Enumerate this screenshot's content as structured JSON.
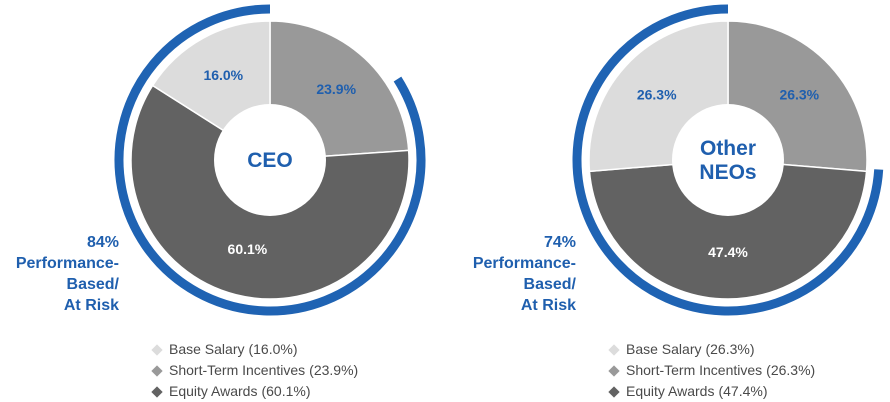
{
  "chart_data": [
    {
      "type": "pie",
      "title": "CEO",
      "categories": [
        "Base Salary",
        "Short-Term Incentives",
        "Equity Awards"
      ],
      "values": [
        16.0,
        23.9,
        60.1
      ],
      "value_labels": [
        "16.0%",
        "23.9%",
        "60.1%"
      ],
      "colors": [
        "#dcdcdc",
        "#999999",
        "#626262"
      ],
      "at_risk": {
        "value": 84,
        "pct_label": "84%",
        "label_lines": [
          "Performance-",
          "Based/",
          "At Risk"
        ]
      },
      "legend": [
        {
          "label": "Base Salary",
          "value": "(16.0%)"
        },
        {
          "label": "Short-Term Incentives",
          "value": "(23.9%)"
        },
        {
          "label": "Equity Awards",
          "value": "(60.1%)"
        }
      ]
    },
    {
      "type": "pie",
      "title_lines": [
        "Other",
        "NEOs"
      ],
      "categories": [
        "Base Salary",
        "Short-Term Incentives",
        "Equity Awards"
      ],
      "values": [
        26.3,
        26.3,
        47.4
      ],
      "value_labels": [
        "26.3%",
        "26.3%",
        "47.4%"
      ],
      "colors": [
        "#dcdcdc",
        "#999999",
        "#626262"
      ],
      "at_risk": {
        "value": 74,
        "pct_label": "74%",
        "label_lines": [
          "Performance-",
          "Based/",
          "At Risk"
        ]
      },
      "legend": [
        {
          "label": "Base Salary",
          "value": "(26.3%)"
        },
        {
          "label": "Short-Term Incentives",
          "value": "(26.3%)"
        },
        {
          "label": "Equity Awards",
          "value": "(47.4%)"
        }
      ]
    }
  ],
  "colors": {
    "accent": "#1f5fae",
    "ring": "#1f63b3",
    "label_on_dark": "#ffffff",
    "label_on_light": "#1f5fae",
    "text": "#4a4a4a"
  }
}
